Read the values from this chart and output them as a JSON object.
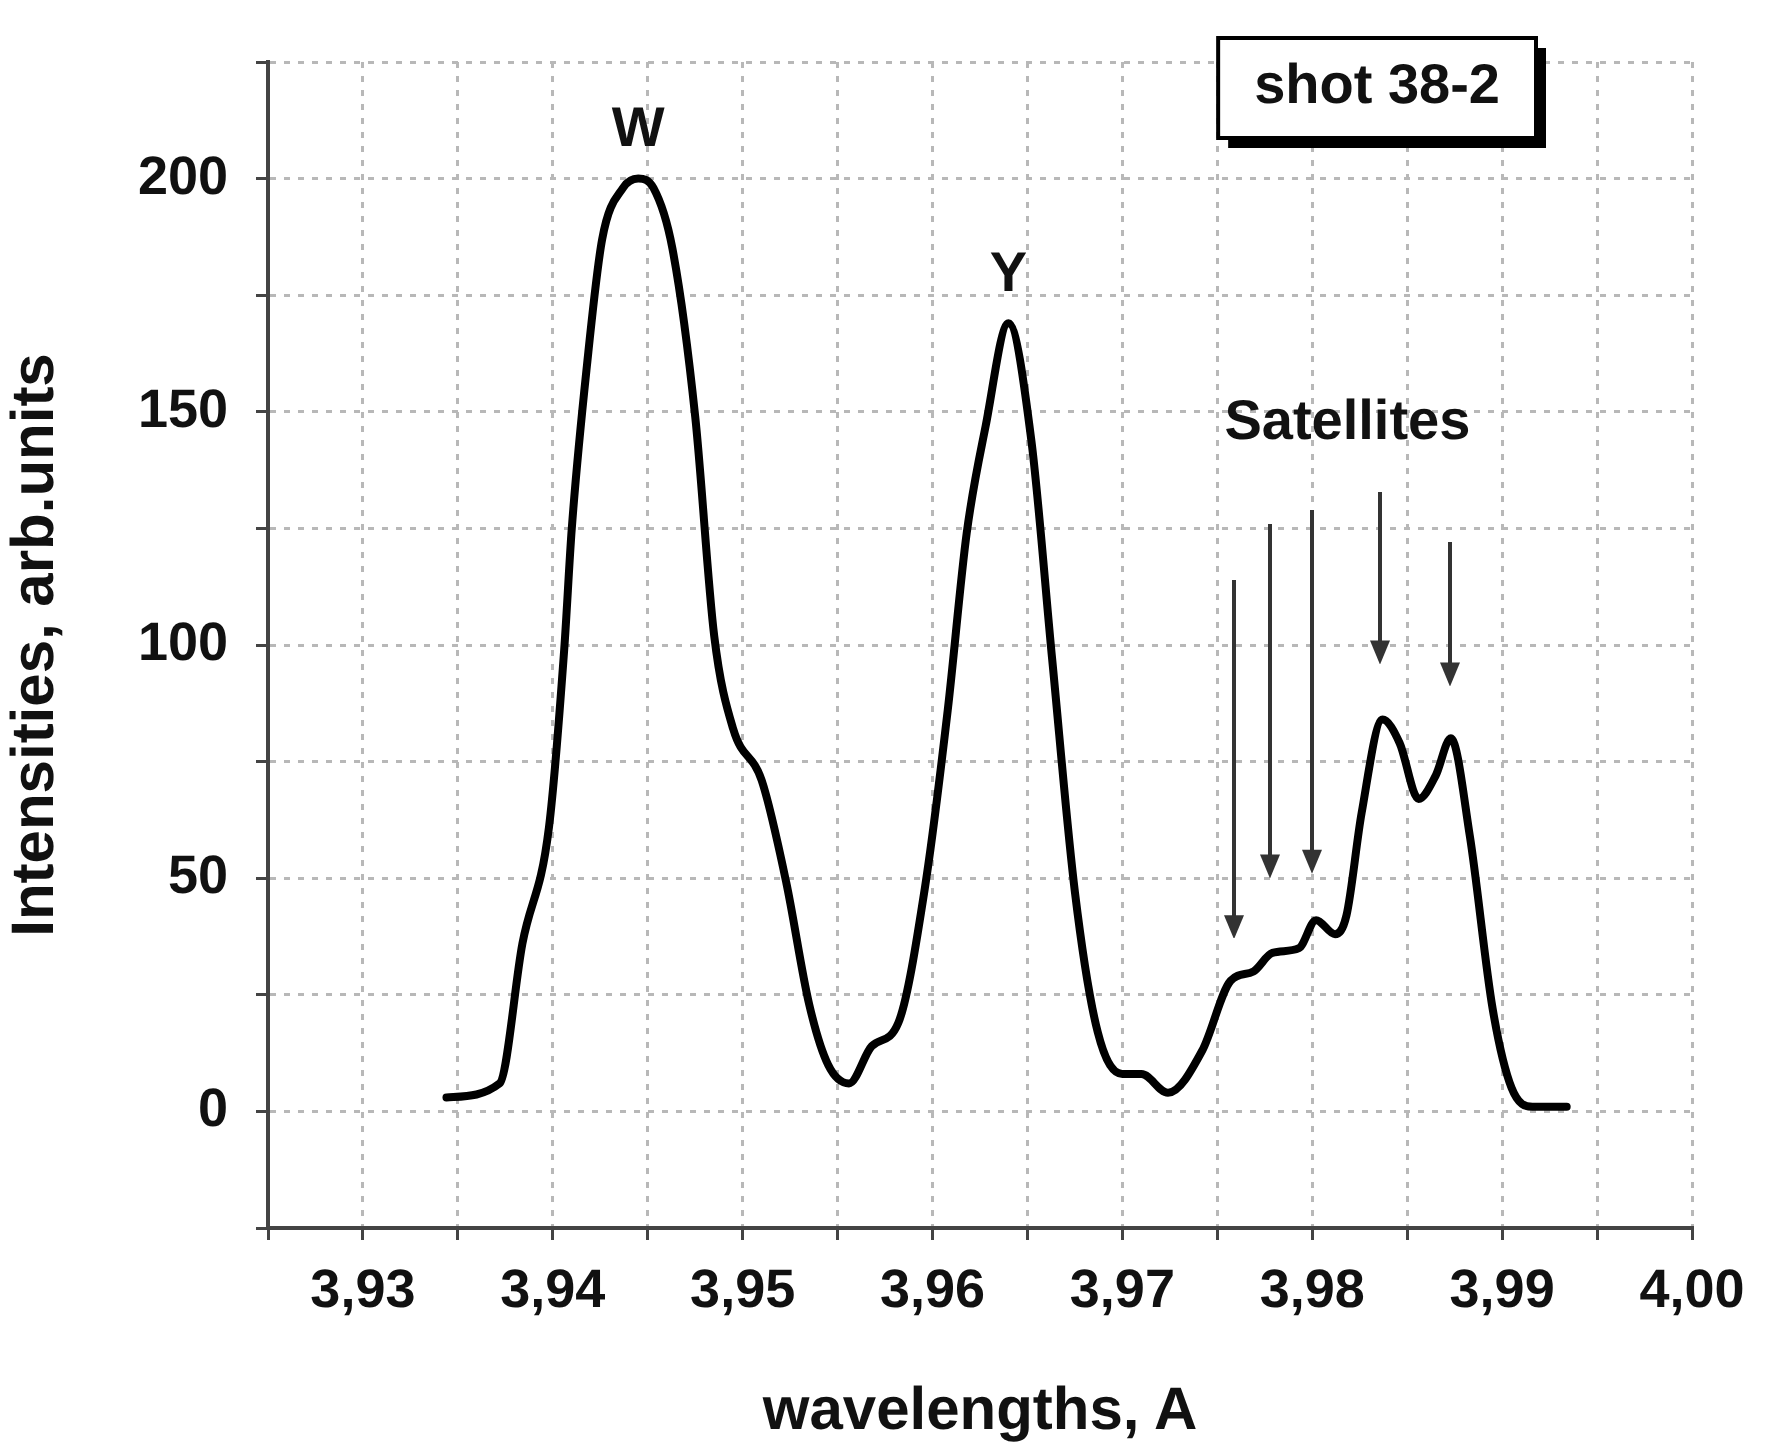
{
  "chart_data": {
    "type": "line",
    "title": "shot 38-2",
    "xlabel": "wavelengths, A",
    "ylabel": "Intensities, arb.units",
    "x": [
      3.9344,
      3.9372,
      3.9384,
      3.9398,
      3.9406,
      3.941,
      3.9418,
      3.9426,
      3.9437,
      3.9445,
      3.9453,
      3.9463,
      3.9475,
      3.9485,
      3.9495,
      3.951,
      3.9523,
      3.9535,
      3.9545,
      3.9556,
      3.9568,
      3.9582,
      3.9596,
      3.9608,
      3.9618,
      3.9628,
      3.964,
      3.9652,
      3.9663,
      3.9675,
      3.9687,
      3.97,
      3.971,
      3.9724,
      3.9742,
      3.9757,
      3.9769,
      3.9779,
      3.9793,
      3.9802,
      3.9812,
      3.9818,
      3.9826,
      3.9837,
      3.9846,
      3.9856,
      3.9865,
      3.9873,
      3.9883,
      3.9895,
      3.9905,
      3.9916,
      3.9934
    ],
    "series": [
      {
        "color": "#000000",
        "values": [
          3,
          6,
          36,
          61,
          99,
          125,
          160,
          187,
          198,
          200,
          198,
          185,
          149,
          102,
          82,
          71,
          49,
          23,
          10,
          6,
          14,
          19,
          48,
          86,
          124,
          147,
          169,
          144,
          97,
          47,
          17,
          8,
          8,
          4,
          13,
          28,
          30,
          34,
          35,
          41,
          38,
          42,
          64,
          84,
          79,
          67,
          72,
          80,
          59,
          22,
          5,
          1,
          1
        ]
      }
    ],
    "xlim": [
      3.925,
      4.0
    ],
    "xticks": [
      {
        "value": 3.925,
        "label": null
      },
      {
        "value": 3.93,
        "label": "3,93"
      },
      {
        "value": 3.935,
        "label": null
      },
      {
        "value": 3.94,
        "label": "3,94"
      },
      {
        "value": 3.945,
        "label": null
      },
      {
        "value": 3.95,
        "label": "3,95"
      },
      {
        "value": 3.955,
        "label": null
      },
      {
        "value": 3.96,
        "label": "3,96"
      },
      {
        "value": 3.965,
        "label": null
      },
      {
        "value": 3.97,
        "label": "3,97"
      },
      {
        "value": 3.975,
        "label": null
      },
      {
        "value": 3.98,
        "label": "3,98"
      },
      {
        "value": 3.985,
        "label": null
      },
      {
        "value": 3.99,
        "label": "3,99"
      },
      {
        "value": 3.995,
        "label": null
      },
      {
        "value": 4.0,
        "label": "4,00"
      }
    ],
    "ylim": [
      -25,
      225
    ],
    "yticks": [
      {
        "value": -25,
        "label": null
      },
      0,
      {
        "value": 25,
        "label": null
      },
      50,
      {
        "value": 75,
        "label": null
      },
      100,
      {
        "value": 125,
        "label": null
      },
      150,
      {
        "value": 175,
        "label": null
      },
      200,
      {
        "value": 225,
        "label": null
      }
    ],
    "grid": true,
    "marker": "none",
    "line_style": "solid",
    "annotations": [
      {
        "text": "W",
        "x": 3.9445,
        "y": 200
      },
      {
        "text": "Y",
        "x": 3.964,
        "y": 169
      },
      "Satellites"
    ]
  }
}
